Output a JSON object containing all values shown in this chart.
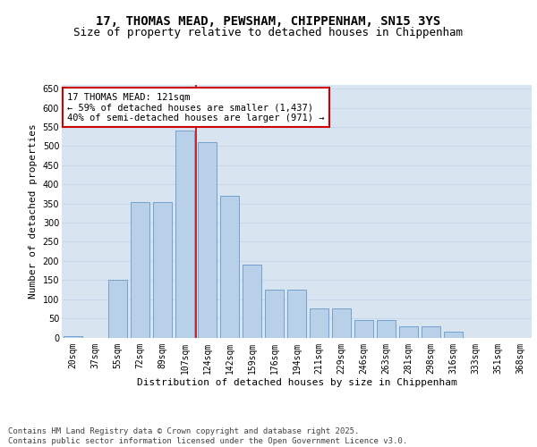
{
  "title_line1": "17, THOMAS MEAD, PEWSHAM, CHIPPENHAM, SN15 3YS",
  "title_line2": "Size of property relative to detached houses in Chippenham",
  "xlabel": "Distribution of detached houses by size in Chippenham",
  "ylabel": "Number of detached properties",
  "categories": [
    "20sqm",
    "37sqm",
    "55sqm",
    "72sqm",
    "89sqm",
    "107sqm",
    "124sqm",
    "142sqm",
    "159sqm",
    "176sqm",
    "194sqm",
    "211sqm",
    "229sqm",
    "246sqm",
    "263sqm",
    "281sqm",
    "298sqm",
    "316sqm",
    "333sqm",
    "351sqm",
    "368sqm"
  ],
  "values": [
    3,
    0,
    150,
    355,
    355,
    540,
    510,
    370,
    190,
    125,
    125,
    75,
    75,
    45,
    45,
    30,
    30,
    15,
    0,
    0,
    0
  ],
  "bar_color": "#b8d0e8",
  "bar_edge_color": "#6699cc",
  "grid_color": "#c8d8ec",
  "background_color": "#d8e4f0",
  "vline_color": "#cc0000",
  "annotation_text": "17 THOMAS MEAD: 121sqm\n← 59% of detached houses are smaller (1,437)\n40% of semi-detached houses are larger (971) →",
  "annotation_box_color": "#cc0000",
  "ylim": [
    0,
    660
  ],
  "yticks": [
    0,
    50,
    100,
    150,
    200,
    250,
    300,
    350,
    400,
    450,
    500,
    550,
    600,
    650
  ],
  "footer": "Contains HM Land Registry data © Crown copyright and database right 2025.\nContains public sector information licensed under the Open Government Licence v3.0.",
  "title_fontsize": 10,
  "subtitle_fontsize": 9,
  "axis_label_fontsize": 8,
  "tick_fontsize": 7,
  "annotation_fontsize": 7.5,
  "footer_fontsize": 6.5
}
